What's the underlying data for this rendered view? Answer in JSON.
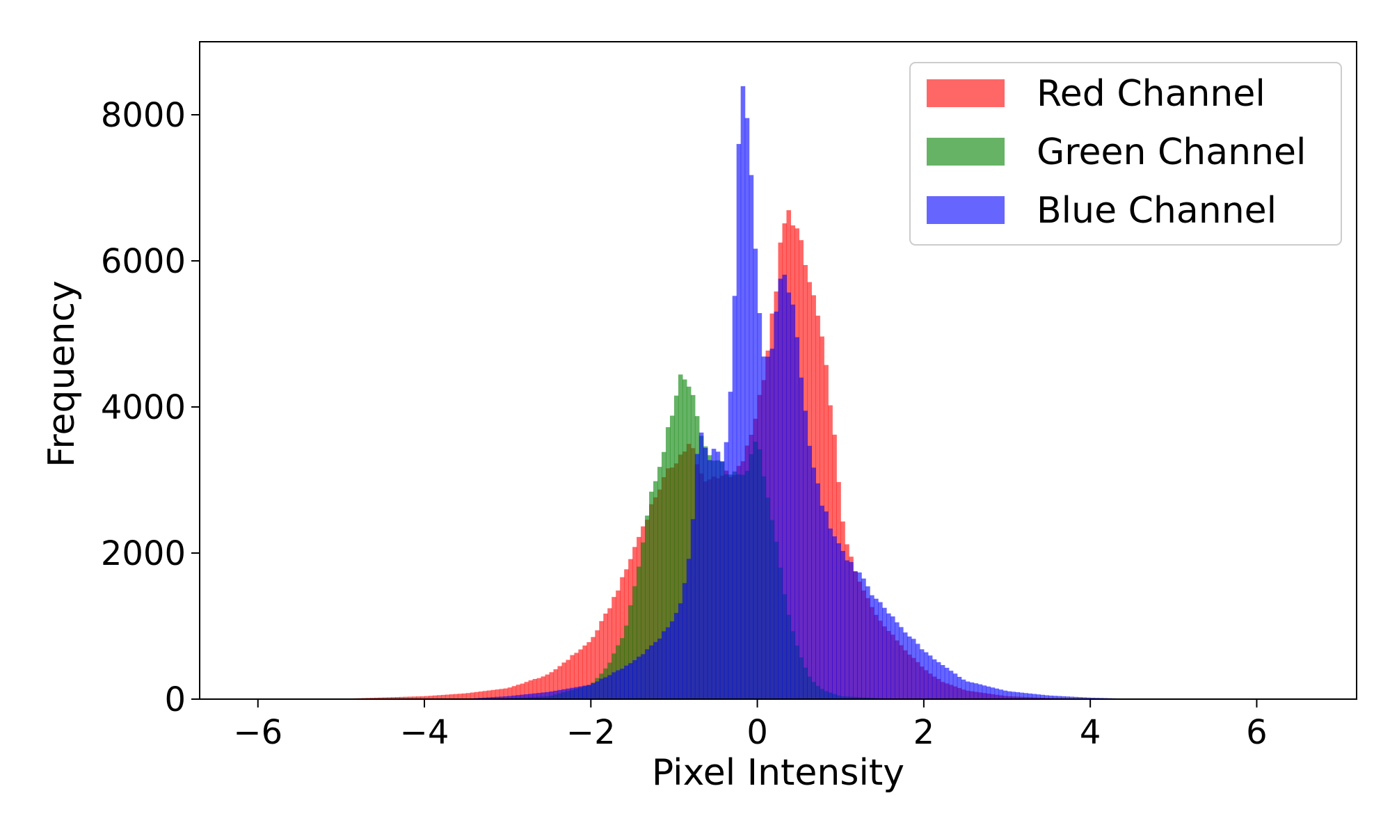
{
  "chart_data": {
    "type": "histogram",
    "title": "",
    "xlabel": "Pixel Intensity",
    "ylabel": "Frequency",
    "xlim": [
      -6.7,
      7.2
    ],
    "ylim": [
      0,
      9000
    ],
    "xticks": [
      -6,
      -4,
      -2,
      0,
      2,
      4,
      6
    ],
    "xtick_labels": [
      "−6",
      "−4",
      "−2",
      "0",
      "2",
      "4",
      "6"
    ],
    "yticks": [
      0,
      2000,
      4000,
      6000,
      8000
    ],
    "ytick_labels": [
      "0",
      "2000",
      "4000",
      "6000",
      "8000"
    ],
    "grid": false,
    "legend_position": "top-right",
    "series": [
      {
        "name": "Red Channel",
        "color": "#ff0000",
        "alpha": 0.6,
        "points": [
          [
            -5.0,
            5
          ],
          [
            -4.0,
            40
          ],
          [
            -3.5,
            80
          ],
          [
            -3.0,
            150
          ],
          [
            -2.5,
            340
          ],
          [
            -2.0,
            800
          ],
          [
            -1.8,
            1200
          ],
          [
            -1.6,
            1700
          ],
          [
            -1.4,
            2300
          ],
          [
            -1.2,
            2850
          ],
          [
            -1.0,
            3250
          ],
          [
            -0.8,
            3500
          ],
          [
            -0.7,
            3100
          ],
          [
            -0.6,
            3000
          ],
          [
            -0.5,
            3050
          ],
          [
            -0.4,
            3100
          ],
          [
            -0.3,
            3000
          ],
          [
            -0.2,
            3200
          ],
          [
            -0.1,
            3500
          ],
          [
            0.0,
            4000
          ],
          [
            0.1,
            4600
          ],
          [
            0.2,
            5400
          ],
          [
            0.3,
            6400
          ],
          [
            0.4,
            6700
          ],
          [
            0.5,
            6300
          ],
          [
            0.6,
            5800
          ],
          [
            0.7,
            5400
          ],
          [
            0.8,
            4700
          ],
          [
            0.9,
            3900
          ],
          [
            1.0,
            2600
          ],
          [
            1.1,
            2000
          ],
          [
            1.2,
            1650
          ],
          [
            1.4,
            1200
          ],
          [
            1.6,
            900
          ],
          [
            1.8,
            650
          ],
          [
            2.0,
            420
          ],
          [
            2.2,
            250
          ],
          [
            2.5,
            120
          ],
          [
            3.0,
            40
          ],
          [
            3.5,
            15
          ],
          [
            4.0,
            5
          ]
        ]
      },
      {
        "name": "Green Channel",
        "color": "#008000",
        "alpha": 0.6,
        "points": [
          [
            -3.0,
            10
          ],
          [
            -2.5,
            40
          ],
          [
            -2.0,
            200
          ],
          [
            -1.8,
            450
          ],
          [
            -1.6,
            900
          ],
          [
            -1.5,
            1400
          ],
          [
            -1.4,
            2000
          ],
          [
            -1.3,
            2700
          ],
          [
            -1.2,
            3100
          ],
          [
            -1.1,
            3550
          ],
          [
            -1.0,
            4000
          ],
          [
            -0.9,
            4500
          ],
          [
            -0.8,
            4250
          ],
          [
            -0.7,
            3700
          ],
          [
            -0.6,
            3400
          ],
          [
            -0.5,
            3300
          ],
          [
            -0.4,
            3150
          ],
          [
            -0.3,
            3050
          ],
          [
            -0.2,
            3100
          ],
          [
            -0.1,
            3200
          ],
          [
            0.0,
            3600
          ],
          [
            0.1,
            2900
          ],
          [
            0.2,
            2300
          ],
          [
            0.3,
            1600
          ],
          [
            0.4,
            1000
          ],
          [
            0.5,
            650
          ],
          [
            0.6,
            350
          ],
          [
            0.7,
            200
          ],
          [
            0.8,
            120
          ],
          [
            1.0,
            40
          ],
          [
            1.5,
            10
          ],
          [
            2.0,
            0
          ]
        ]
      },
      {
        "name": "Blue Channel",
        "color": "#0000ff",
        "alpha": 0.6,
        "points": [
          [
            -3.5,
            5
          ],
          [
            -3.0,
            40
          ],
          [
            -2.5,
            100
          ],
          [
            -2.0,
            200
          ],
          [
            -1.5,
            500
          ],
          [
            -1.2,
            800
          ],
          [
            -1.0,
            1100
          ],
          [
            -0.9,
            1400
          ],
          [
            -0.8,
            2100
          ],
          [
            -0.7,
            3700
          ],
          [
            -0.6,
            3300
          ],
          [
            -0.5,
            3400
          ],
          [
            -0.4,
            3200
          ],
          [
            -0.3,
            4500
          ],
          [
            -0.25,
            6500
          ],
          [
            -0.2,
            8500
          ],
          [
            -0.15,
            8300
          ],
          [
            -0.1,
            7600
          ],
          [
            -0.05,
            7000
          ],
          [
            0.0,
            5500
          ],
          [
            0.1,
            4500
          ],
          [
            0.2,
            5000
          ],
          [
            0.3,
            5900
          ],
          [
            0.4,
            5600
          ],
          [
            0.5,
            4700
          ],
          [
            0.6,
            3700
          ],
          [
            0.7,
            3000
          ],
          [
            0.8,
            2600
          ],
          [
            0.9,
            2300
          ],
          [
            1.0,
            2050
          ],
          [
            1.2,
            1750
          ],
          [
            1.4,
            1400
          ],
          [
            1.6,
            1150
          ],
          [
            1.8,
            900
          ],
          [
            2.0,
            660
          ],
          [
            2.2,
            480
          ],
          [
            2.5,
            250
          ],
          [
            3.0,
            110
          ],
          [
            3.5,
            50
          ],
          [
            4.0,
            20
          ],
          [
            4.5,
            5
          ],
          [
            5.0,
            0
          ]
        ]
      }
    ]
  }
}
